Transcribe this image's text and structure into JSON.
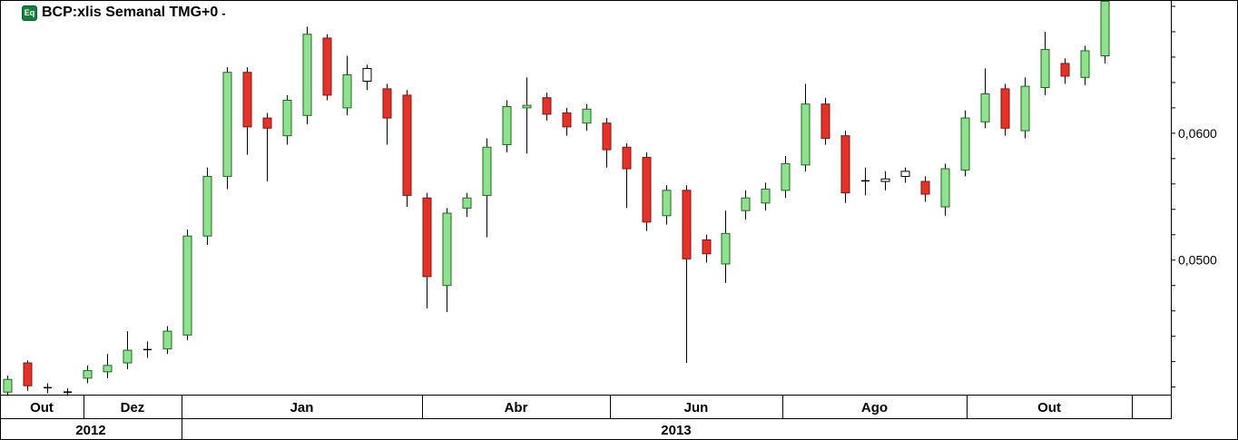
{
  "header": {
    "badge": "Eq",
    "badge_color": "#15803D",
    "title": "BCP:xlis Semanal TMG+0",
    "suffix": "-"
  },
  "chart_data": {
    "type": "candlestick",
    "title": "BCP:xlis Semanal TMG+0",
    "symbol": "BCP:xlis",
    "timeframe": "Semanal",
    "indicator": "TMG+0",
    "xlabel": "",
    "ylabel": "",
    "ylim": [
      0.0394,
      0.0705
    ],
    "x_slots": 58.7,
    "grid": false,
    "legend_position": "none",
    "y_axis_side": "right",
    "y_ticks": {
      "step": 0.002,
      "labeled": [
        {
          "value": 0.06,
          "label": "0,0600"
        },
        {
          "value": 0.05,
          "label": "0,0500"
        }
      ]
    },
    "colors": {
      "up_fill": "#8FE08F",
      "up_stroke": "#1A6B1A",
      "down_fill": "#E53228",
      "down_stroke": "#801510",
      "wick": "#000000",
      "hollow_fill": "#FFFFFF",
      "hollow_stroke": "#000000"
    },
    "months": [
      {
        "label": "Out",
        "from": 0,
        "to": 0.0713
      },
      {
        "label": "Dez",
        "from": 0.0713,
        "to": 0.155
      },
      {
        "label": "Jan",
        "from": 0.155,
        "to": 0.3605
      },
      {
        "label": "Abr",
        "from": 0.3605,
        "to": 0.5209
      },
      {
        "label": "Jun",
        "from": 0.5209,
        "to": 0.6682
      },
      {
        "label": "Ago",
        "from": 0.6682,
        "to": 0.8256
      },
      {
        "label": "Out",
        "from": 0.8256,
        "to": 0.9667
      },
      {
        "label": "",
        "from": 0.9667,
        "to": 1
      }
    ],
    "years": [
      {
        "label": "2012",
        "from": 0,
        "to": 0.155
      },
      {
        "label": "2013",
        "from": 0.155,
        "to": 1
      }
    ],
    "hollow_indices": [
      18,
      44,
      45
    ],
    "candles": [
      [
        0.0396,
        0.0409,
        0.0393,
        0.0406
      ],
      [
        0.0419,
        0.0421,
        0.0397,
        0.0401
      ],
      [
        0.0399,
        0.0403,
        0.0395,
        0.04
      ],
      [
        0.0396,
        0.0399,
        0.0393,
        0.0396
      ],
      [
        0.0407,
        0.0417,
        0.0403,
        0.0413
      ],
      [
        0.0412,
        0.0426,
        0.0407,
        0.0417
      ],
      [
        0.0419,
        0.0444,
        0.0414,
        0.0429
      ],
      [
        0.0429,
        0.0436,
        0.0423,
        0.043
      ],
      [
        0.043,
        0.0448,
        0.0426,
        0.0444
      ],
      [
        0.0441,
        0.0524,
        0.0437,
        0.0519
      ],
      [
        0.0519,
        0.0573,
        0.0512,
        0.0566
      ],
      [
        0.0566,
        0.0652,
        0.0556,
        0.0648
      ],
      [
        0.0648,
        0.0652,
        0.0583,
        0.0605
      ],
      [
        0.0612,
        0.0616,
        0.0562,
        0.0604
      ],
      [
        0.0598,
        0.063,
        0.0591,
        0.0626
      ],
      [
        0.0614,
        0.0684,
        0.0607,
        0.0678
      ],
      [
        0.0675,
        0.0678,
        0.0626,
        0.063
      ],
      [
        0.062,
        0.0661,
        0.0614,
        0.0646
      ],
      [
        0.0641,
        0.0654,
        0.0634,
        0.0651
      ],
      [
        0.0635,
        0.0639,
        0.0591,
        0.0612
      ],
      [
        0.063,
        0.0634,
        0.0542,
        0.0551
      ],
      [
        0.0549,
        0.0553,
        0.0462,
        0.0487
      ],
      [
        0.048,
        0.0541,
        0.0459,
        0.0537
      ],
      [
        0.0541,
        0.0553,
        0.0534,
        0.0549
      ],
      [
        0.0551,
        0.0596,
        0.0518,
        0.0589
      ],
      [
        0.0591,
        0.0626,
        0.0585,
        0.0621
      ],
      [
        0.062,
        0.0644,
        0.0584,
        0.0622
      ],
      [
        0.0628,
        0.0632,
        0.061,
        0.0615
      ],
      [
        0.0616,
        0.062,
        0.0598,
        0.0605
      ],
      [
        0.0608,
        0.0623,
        0.0602,
        0.0619
      ],
      [
        0.0608,
        0.0612,
        0.0573,
        0.0587
      ],
      [
        0.0589,
        0.0592,
        0.0541,
        0.0572
      ],
      [
        0.0581,
        0.0585,
        0.0523,
        0.053
      ],
      [
        0.0535,
        0.0559,
        0.0528,
        0.0555
      ],
      [
        0.0555,
        0.0559,
        0.0419,
        0.0501
      ],
      [
        0.0516,
        0.052,
        0.0498,
        0.0505
      ],
      [
        0.0497,
        0.0539,
        0.0482,
        0.0521
      ],
      [
        0.0539,
        0.0555,
        0.0532,
        0.0549
      ],
      [
        0.0545,
        0.0561,
        0.0539,
        0.0556
      ],
      [
        0.0555,
        0.0582,
        0.0549,
        0.0576
      ],
      [
        0.0575,
        0.0639,
        0.057,
        0.0623
      ],
      [
        0.0623,
        0.0628,
        0.0591,
        0.0596
      ],
      [
        0.0598,
        0.0602,
        0.0545,
        0.0553
      ],
      [
        0.0562,
        0.0573,
        0.0551,
        0.0563
      ],
      [
        0.0562,
        0.057,
        0.0555,
        0.0564
      ],
      [
        0.0566,
        0.0573,
        0.0561,
        0.057
      ],
      [
        0.0562,
        0.0566,
        0.0546,
        0.0552
      ],
      [
        0.0542,
        0.0576,
        0.0535,
        0.0572
      ],
      [
        0.0571,
        0.0618,
        0.0566,
        0.0612
      ],
      [
        0.0609,
        0.0651,
        0.0604,
        0.0631
      ],
      [
        0.0635,
        0.0639,
        0.0598,
        0.0604
      ],
      [
        0.0602,
        0.0644,
        0.0596,
        0.0637
      ],
      [
        0.0636,
        0.068,
        0.063,
        0.0666
      ],
      [
        0.0655,
        0.0659,
        0.0639,
        0.0645
      ],
      [
        0.0644,
        0.0669,
        0.0638,
        0.0665
      ],
      [
        0.0661,
        0.0706,
        0.0655,
        0.0704
      ]
    ]
  }
}
